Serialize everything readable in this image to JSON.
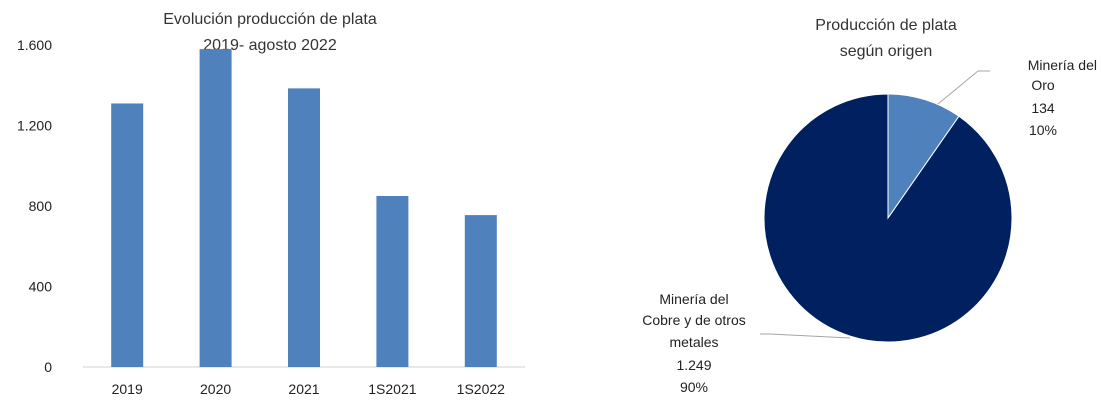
{
  "colors": {
    "bar": "#4f81bd",
    "axis": "#d0d0d0",
    "leader": "#a6a6a6"
  },
  "chart_data": [
    {
      "type": "bar",
      "title_lines": [
        "Evolución producción de plata",
        "2019- agosto 2022"
      ],
      "categories": [
        "2019",
        "2020",
        "2021",
        "1S2021",
        "1S2022"
      ],
      "values": [
        1310,
        1580,
        1385,
        850,
        755
      ],
      "y_ticks": [
        0,
        400,
        800,
        1200,
        1600
      ],
      "y_tick_labels": [
        "0",
        "400",
        "800",
        "1.200",
        "1.600"
      ],
      "ylim": [
        0,
        1700
      ],
      "grid": false,
      "legend": "none"
    },
    {
      "type": "pie",
      "title_lines": [
        "Producción de plata",
        "según origen"
      ],
      "slices": [
        {
          "name_lines": [
            "Minería del",
            "Oro"
          ],
          "value": 134,
          "value_label": "134",
          "percent": "10%",
          "color": "#4f81bd"
        },
        {
          "name_lines": [
            "Minería del",
            "Cobre y de otros",
            "metales"
          ],
          "value": 1249,
          "value_label": "1.249",
          "percent": "90%",
          "color": "#002060"
        }
      ],
      "legend": "none"
    }
  ]
}
